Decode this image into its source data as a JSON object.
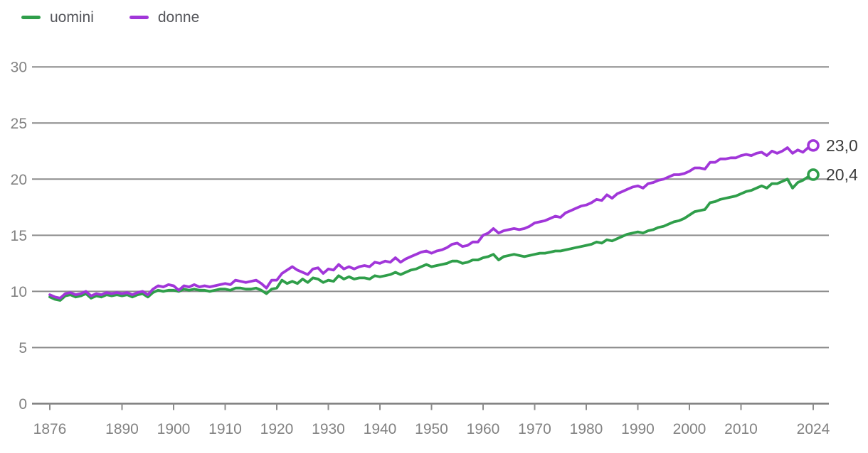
{
  "legend": {
    "items": [
      {
        "label": "uomini",
        "color": "#2f9e4a"
      },
      {
        "label": "donne",
        "color": "#a136d9"
      }
    ]
  },
  "colors": {
    "uomini_line": "#2f9e4a",
    "donne_line": "#a136d9",
    "grid": "#8c8c8c",
    "axis": "#7d7d7d",
    "tick_label": "#828282",
    "value_label": "#3a3a3a",
    "background": "#ffffff"
  },
  "chart_data": {
    "type": "line",
    "title": "",
    "xlabel": "",
    "ylabel": "",
    "grid": true,
    "legend_position": "top-left",
    "xlim": [
      1876,
      2024
    ],
    "ylim": [
      0,
      30
    ],
    "y_ticks": [
      0,
      5,
      10,
      15,
      20,
      25,
      30
    ],
    "x_tick_years": [
      1876,
      1890,
      1900,
      1910,
      1920,
      1930,
      1940,
      1950,
      1960,
      1970,
      1980,
      1990,
      2000,
      2010,
      2024
    ],
    "x_start_year": 1876,
    "x_end_year": 2024,
    "series": [
      {
        "name": "uomini",
        "color": "#2f9e4a",
        "end_label": "20,4",
        "end_value": 20.4,
        "values": [
          9.5,
          9.3,
          9.2,
          9.6,
          9.7,
          9.5,
          9.6,
          9.8,
          9.4,
          9.6,
          9.5,
          9.7,
          9.6,
          9.7,
          9.6,
          9.7,
          9.5,
          9.7,
          9.8,
          9.5,
          9.9,
          10.1,
          10.0,
          10.1,
          10.1,
          10.0,
          10.2,
          10.1,
          10.2,
          10.1,
          10.1,
          10.0,
          10.1,
          10.2,
          10.2,
          10.1,
          10.3,
          10.3,
          10.2,
          10.2,
          10.3,
          10.1,
          9.8,
          10.2,
          10.3,
          11.0,
          10.7,
          10.9,
          10.7,
          11.1,
          10.8,
          11.2,
          11.1,
          10.8,
          11.0,
          10.9,
          11.4,
          11.1,
          11.3,
          11.1,
          11.2,
          11.2,
          11.1,
          11.4,
          11.3,
          11.4,
          11.5,
          11.7,
          11.5,
          11.7,
          11.9,
          12.0,
          12.2,
          12.4,
          12.2,
          12.3,
          12.4,
          12.5,
          12.7,
          12.7,
          12.5,
          12.6,
          12.8,
          12.8,
          13.0,
          13.1,
          13.3,
          12.8,
          13.1,
          13.2,
          13.3,
          13.2,
          13.1,
          13.2,
          13.3,
          13.4,
          13.4,
          13.5,
          13.6,
          13.6,
          13.7,
          13.8,
          13.9,
          14.0,
          14.1,
          14.2,
          14.4,
          14.3,
          14.6,
          14.5,
          14.7,
          14.9,
          15.1,
          15.2,
          15.3,
          15.2,
          15.4,
          15.5,
          15.7,
          15.8,
          16.0,
          16.2,
          16.3,
          16.5,
          16.8,
          17.1,
          17.2,
          17.3,
          17.9,
          18.0,
          18.2,
          18.3,
          18.4,
          18.5,
          18.7,
          18.9,
          19.0,
          19.2,
          19.4,
          19.2,
          19.6,
          19.6,
          19.8,
          20.0,
          19.2,
          19.7,
          19.9,
          20.2,
          20.4
        ]
      },
      {
        "name": "donne",
        "color": "#a136d9",
        "end_label": "23,0",
        "end_value": 23.0,
        "values": [
          9.7,
          9.5,
          9.4,
          9.8,
          9.9,
          9.7,
          9.8,
          10.0,
          9.6,
          9.8,
          9.7,
          9.9,
          9.8,
          9.9,
          9.8,
          9.9,
          9.7,
          9.9,
          10.0,
          9.7,
          10.2,
          10.5,
          10.4,
          10.6,
          10.5,
          10.1,
          10.5,
          10.4,
          10.6,
          10.4,
          10.5,
          10.4,
          10.5,
          10.6,
          10.7,
          10.6,
          11.0,
          10.9,
          10.8,
          10.9,
          11.0,
          10.7,
          10.3,
          11.0,
          11.0,
          11.6,
          11.9,
          12.2,
          11.9,
          11.7,
          11.5,
          12.0,
          12.1,
          11.6,
          12.0,
          11.9,
          12.4,
          12.0,
          12.2,
          12.0,
          12.2,
          12.3,
          12.2,
          12.6,
          12.5,
          12.7,
          12.6,
          13.0,
          12.6,
          12.9,
          13.1,
          13.3,
          13.5,
          13.6,
          13.4,
          13.6,
          13.7,
          13.9,
          14.2,
          14.3,
          14.0,
          14.1,
          14.4,
          14.4,
          15.0,
          15.2,
          15.6,
          15.2,
          15.4,
          15.5,
          15.6,
          15.5,
          15.6,
          15.8,
          16.1,
          16.2,
          16.3,
          16.5,
          16.7,
          16.6,
          17.0,
          17.2,
          17.4,
          17.6,
          17.7,
          17.9,
          18.2,
          18.1,
          18.6,
          18.3,
          18.7,
          18.9,
          19.1,
          19.3,
          19.4,
          19.2,
          19.6,
          19.7,
          19.9,
          20.0,
          20.2,
          20.4,
          20.4,
          20.5,
          20.7,
          21.0,
          21.0,
          20.9,
          21.5,
          21.5,
          21.8,
          21.8,
          21.9,
          21.9,
          22.1,
          22.2,
          22.1,
          22.3,
          22.4,
          22.1,
          22.5,
          22.3,
          22.5,
          22.8,
          22.3,
          22.6,
          22.4,
          22.8,
          23.0
        ]
      }
    ]
  }
}
